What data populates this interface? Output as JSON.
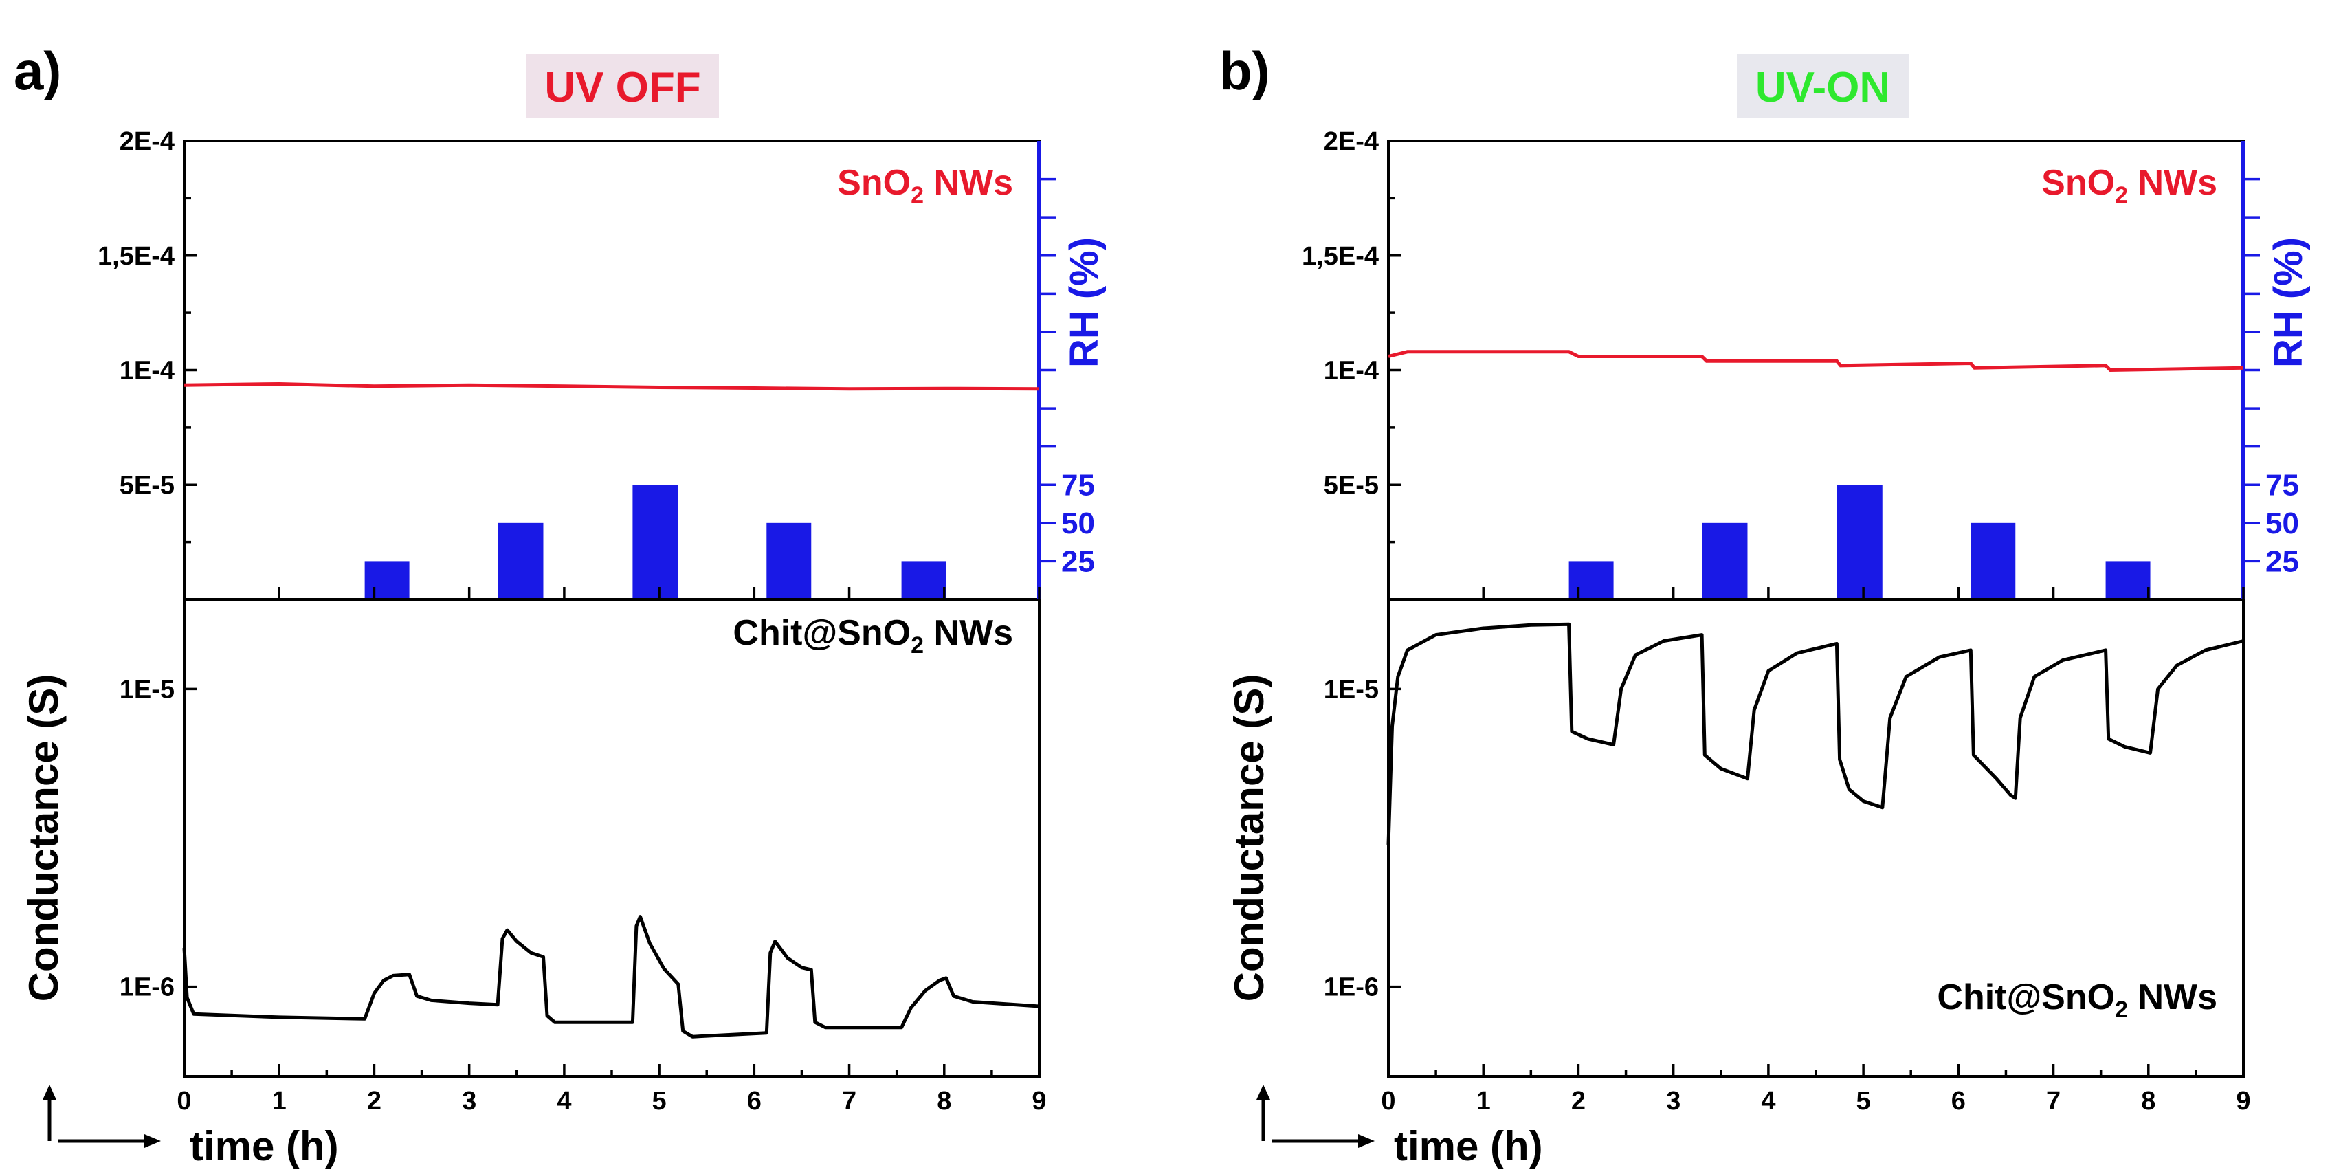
{
  "chart_data": [
    {
      "panel": "a)",
      "badge": "UV OFF",
      "badge_color": "#e8192c",
      "badge_bg": "#efe2ea",
      "type": "line",
      "xlabel": "time (h)",
      "xlim": [
        0,
        9
      ],
      "x_ticks": [
        "0",
        "1",
        "2",
        "3",
        "4",
        "5",
        "6",
        "7",
        "8",
        "9"
      ],
      "top_panel": {
        "series_label": "SnO2 NWs",
        "series_label_main": "SnO",
        "series_label_sub": "2",
        "series_label_tail": " NWs",
        "color": "#e8192c",
        "y_scale": "linear",
        "ylim": [
          0,
          0.0002
        ],
        "y_ticks": [
          {
            "label": "2E-4",
            "value": 0.0002
          },
          {
            "label": "1,5E-4",
            "value": 0.00015
          },
          {
            "label": "1E-4",
            "value": 0.0001
          },
          {
            "label": "5E-5",
            "value": 5e-05
          }
        ],
        "data": [
          [
            0,
            9.35e-05
          ],
          [
            1,
            9.4e-05
          ],
          [
            2,
            9.3e-05
          ],
          [
            3,
            9.35e-05
          ],
          [
            4,
            9.3e-05
          ],
          [
            5,
            9.25e-05
          ],
          [
            6,
            9.22e-05
          ],
          [
            7,
            9.18e-05
          ],
          [
            8,
            9.2e-05
          ],
          [
            9,
            9.18e-05
          ]
        ]
      },
      "rh": {
        "ylabel": "RH (%)",
        "color": "#1919e6",
        "ylim": [
          0,
          300
        ],
        "tick_labels": [
          "25",
          "50",
          "75"
        ],
        "tick_values": [
          25,
          50,
          75
        ],
        "bars": [
          {
            "start": 1.9,
            "end": 2.37,
            "value": 25
          },
          {
            "start": 3.3,
            "end": 3.78,
            "value": 50
          },
          {
            "start": 4.72,
            "end": 5.2,
            "value": 75
          },
          {
            "start": 6.13,
            "end": 6.6,
            "value": 50
          },
          {
            "start": 7.55,
            "end": 8.02,
            "value": 25
          }
        ]
      },
      "bottom_panel": {
        "series_label": "Chit@SnO2 NWs",
        "series_label_main": "Chit@SnO",
        "series_label_sub": "2",
        "series_label_tail": " NWs",
        "label_position": "top-right",
        "color": "#000000",
        "ylabel": "Conductance (S)",
        "y_scale": "log",
        "ylim": [
          5e-07,
          2e-05
        ],
        "y_ticks": [
          {
            "label": "1E-5",
            "value": 1e-05
          },
          {
            "label": "1E-6",
            "value": 1e-06
          }
        ],
        "data": [
          [
            0,
            1.35e-06
          ],
          [
            0.03,
            9.2e-07
          ],
          [
            0.1,
            8.1e-07
          ],
          [
            1,
            7.9e-07
          ],
          [
            1.9,
            7.8e-07
          ],
          [
            2.0,
            9.5e-07
          ],
          [
            2.1,
            1.05e-06
          ],
          [
            2.2,
            1.09e-06
          ],
          [
            2.37,
            1.1e-06
          ],
          [
            2.45,
            9.3e-07
          ],
          [
            2.6,
            9e-07
          ],
          [
            3.0,
            8.8e-07
          ],
          [
            3.3,
            8.7e-07
          ],
          [
            3.35,
            1.45e-06
          ],
          [
            3.4,
            1.55e-06
          ],
          [
            3.5,
            1.42e-06
          ],
          [
            3.65,
            1.3e-06
          ],
          [
            3.78,
            1.26e-06
          ],
          [
            3.82,
            8e-07
          ],
          [
            3.9,
            7.6e-07
          ],
          [
            4.72,
            7.6e-07
          ],
          [
            4.76,
            1.6e-06
          ],
          [
            4.8,
            1.72e-06
          ],
          [
            4.9,
            1.4e-06
          ],
          [
            5.05,
            1.15e-06
          ],
          [
            5.2,
            1.02e-06
          ],
          [
            5.25,
            7.1e-07
          ],
          [
            5.35,
            6.8e-07
          ],
          [
            6.13,
            7e-07
          ],
          [
            6.17,
            1.3e-06
          ],
          [
            6.22,
            1.42e-06
          ],
          [
            6.35,
            1.25e-06
          ],
          [
            6.5,
            1.16e-06
          ],
          [
            6.6,
            1.14e-06
          ],
          [
            6.64,
            7.6e-07
          ],
          [
            6.75,
            7.3e-07
          ],
          [
            7.55,
            7.3e-07
          ],
          [
            7.65,
            8.5e-07
          ],
          [
            7.8,
            9.7e-07
          ],
          [
            7.95,
            1.05e-06
          ],
          [
            8.02,
            1.07e-06
          ],
          [
            8.1,
            9.3e-07
          ],
          [
            8.3,
            8.9e-07
          ],
          [
            9,
            8.6e-07
          ]
        ]
      }
    },
    {
      "panel": "b)",
      "badge": "UV-ON",
      "badge_color": "#2ee82e",
      "badge_bg": "#e8e8ee",
      "type": "line",
      "xlabel": "time (h)",
      "xlim": [
        0,
        9
      ],
      "x_ticks": [
        "0",
        "1",
        "2",
        "3",
        "4",
        "5",
        "6",
        "7",
        "8",
        "9"
      ],
      "top_panel": {
        "series_label": "SnO2 NWs",
        "series_label_main": "SnO",
        "series_label_sub": "2",
        "series_label_tail": " NWs",
        "color": "#e8192c",
        "y_scale": "linear",
        "ylim": [
          0,
          0.0002
        ],
        "y_ticks": [
          {
            "label": "2E-4",
            "value": 0.0002
          },
          {
            "label": "1,5E-4",
            "value": 0.00015
          },
          {
            "label": "1E-4",
            "value": 0.0001
          },
          {
            "label": "5E-5",
            "value": 5e-05
          }
        ],
        "data": [
          [
            0,
            0.000106
          ],
          [
            0.2,
            0.000108
          ],
          [
            1.9,
            0.000108
          ],
          [
            2.0,
            0.000106
          ],
          [
            3.3,
            0.000106
          ],
          [
            3.35,
            0.000104
          ],
          [
            4.72,
            0.000104
          ],
          [
            4.76,
            0.000102
          ],
          [
            6.13,
            0.000103
          ],
          [
            6.17,
            0.000101
          ],
          [
            7.55,
            0.000102
          ],
          [
            7.6,
            0.0001
          ],
          [
            9,
            0.000101
          ]
        ]
      },
      "rh": {
        "ylabel": "RH (%)",
        "color": "#1919e6",
        "ylim": [
          0,
          300
        ],
        "tick_labels": [
          "25",
          "50",
          "75"
        ],
        "tick_values": [
          25,
          50,
          75
        ],
        "bars": [
          {
            "start": 1.9,
            "end": 2.37,
            "value": 25
          },
          {
            "start": 3.3,
            "end": 3.78,
            "value": 50
          },
          {
            "start": 4.72,
            "end": 5.2,
            "value": 75
          },
          {
            "start": 6.13,
            "end": 6.6,
            "value": 50
          },
          {
            "start": 7.55,
            "end": 8.02,
            "value": 25
          }
        ]
      },
      "bottom_panel": {
        "series_label": "Chit@SnO2 NWs",
        "series_label_main": "Chit@SnO",
        "series_label_sub": "2",
        "series_label_tail": " NWs",
        "label_position": "bottom-right",
        "color": "#000000",
        "ylabel": "Conductance (S)",
        "y_scale": "log",
        "ylim": [
          5e-07,
          2e-05
        ],
        "y_ticks": [
          {
            "label": "1E-5",
            "value": 1e-05
          },
          {
            "label": "1E-6",
            "value": 1e-06
          }
        ],
        "data": [
          [
            0,
            3e-06
          ],
          [
            0.04,
            7.5e-06
          ],
          [
            0.1,
            1.1e-05
          ],
          [
            0.2,
            1.35e-05
          ],
          [
            0.5,
            1.52e-05
          ],
          [
            1,
            1.6e-05
          ],
          [
            1.5,
            1.64e-05
          ],
          [
            1.9,
            1.65e-05
          ],
          [
            1.93,
            7.2e-06
          ],
          [
            2.1,
            6.8e-06
          ],
          [
            2.37,
            6.5e-06
          ],
          [
            2.45,
            1e-05
          ],
          [
            2.6,
            1.3e-05
          ],
          [
            2.9,
            1.45e-05
          ],
          [
            3.3,
            1.52e-05
          ],
          [
            3.33,
            6e-06
          ],
          [
            3.5,
            5.4e-06
          ],
          [
            3.78,
            5e-06
          ],
          [
            3.85,
            8.5e-06
          ],
          [
            4.0,
            1.15e-05
          ],
          [
            4.3,
            1.32e-05
          ],
          [
            4.72,
            1.42e-05
          ],
          [
            4.75,
            5.8e-06
          ],
          [
            4.85,
            4.6e-06
          ],
          [
            5.0,
            4.2e-06
          ],
          [
            5.2,
            4e-06
          ],
          [
            5.28,
            8e-06
          ],
          [
            5.45,
            1.1e-05
          ],
          [
            5.8,
            1.28e-05
          ],
          [
            6.13,
            1.35e-05
          ],
          [
            6.16,
            6e-06
          ],
          [
            6.4,
            5e-06
          ],
          [
            6.55,
            4.4e-06
          ],
          [
            6.6,
            4.3e-06
          ],
          [
            6.65,
            8e-06
          ],
          [
            6.8,
            1.1e-05
          ],
          [
            7.1,
            1.25e-05
          ],
          [
            7.55,
            1.35e-05
          ],
          [
            7.58,
            6.8e-06
          ],
          [
            7.75,
            6.4e-06
          ],
          [
            8.02,
            6.1e-06
          ],
          [
            8.1,
            1e-05
          ],
          [
            8.3,
            1.2e-05
          ],
          [
            8.6,
            1.35e-05
          ],
          [
            9,
            1.45e-05
          ]
        ]
      }
    }
  ]
}
